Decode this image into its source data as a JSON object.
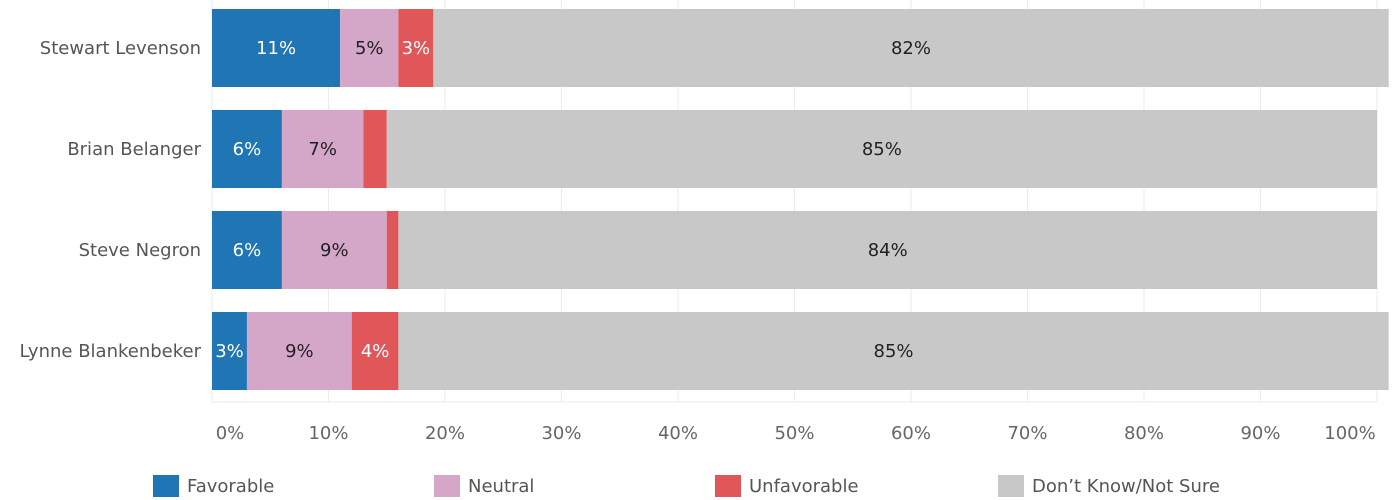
{
  "chart_data": {
    "type": "bar",
    "orientation": "horizontal",
    "stacked": true,
    "categories": [
      "Stewart Levenson",
      "Brian Belanger",
      "Steve Negron",
      "Lynne Blankenbeker"
    ],
    "series": [
      {
        "name": "Favorable",
        "color": "#2076b4",
        "values": [
          11,
          6,
          6,
          3
        ],
        "labels": [
          "11%",
          "6%",
          "6%",
          "3%"
        ],
        "label_color": "#ffffff"
      },
      {
        "name": "Neutral",
        "color": "#d4a6c8",
        "values": [
          5,
          7,
          9,
          9
        ],
        "labels": [
          "5%",
          "7%",
          "9%",
          "9%"
        ],
        "label_color": "#222222"
      },
      {
        "name": "Unfavorable",
        "color": "#e15759",
        "values": [
          3,
          2,
          1,
          4
        ],
        "labels": [
          "3%",
          "",
          "",
          "4%"
        ],
        "label_color": "#ffffff"
      },
      {
        "name": "Don’t Know/Not Sure",
        "color": "#c8c8c8",
        "values": [
          82,
          85,
          84,
          85
        ],
        "labels": [
          "82%",
          "85%",
          "84%",
          "85%"
        ],
        "label_color": "#222222"
      }
    ],
    "xlim": [
      0,
      100
    ],
    "xticks": [
      "0%",
      "10%",
      "20%",
      "30%",
      "40%",
      "50%",
      "60%",
      "70%",
      "80%",
      "90%",
      "100%"
    ],
    "grid": true,
    "legend_position": "bottom"
  }
}
